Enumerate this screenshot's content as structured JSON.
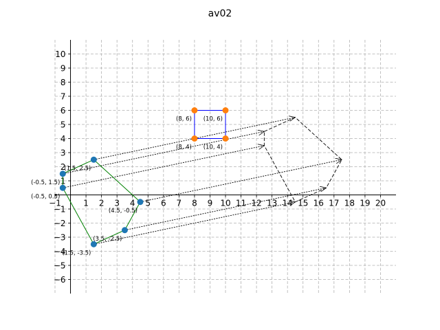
{
  "chart_data": {
    "type": "scatter",
    "title": "av02",
    "xlim": [
      -1,
      21
    ],
    "ylim": [
      -7,
      11
    ],
    "xticks": [
      -1,
      1,
      2,
      3,
      4,
      5,
      6,
      7,
      8,
      9,
      10,
      11,
      12,
      13,
      14,
      15,
      16,
      17,
      18,
      19,
      20
    ],
    "yticks": [
      -6,
      -5,
      -4,
      -3,
      -2,
      -1,
      1,
      2,
      3,
      4,
      5,
      6,
      7,
      8,
      9,
      10
    ],
    "grid": true,
    "colors": {
      "green_polygon": "#008000",
      "blue_square": "#0000ff",
      "blue_points": "#1f77b4",
      "orange_points": "#ff7f0e",
      "dashed": "#000000"
    },
    "polygon_green": [
      [
        -0.5,
        1.5
      ],
      [
        1.5,
        2.5
      ],
      [
        4.5,
        -0.5
      ],
      [
        3.5,
        -2.5
      ],
      [
        1.5,
        -3.5
      ],
      [
        -0.5,
        0.5
      ]
    ],
    "square_blue": [
      [
        8,
        6
      ],
      [
        10,
        6
      ],
      [
        10,
        4
      ],
      [
        8,
        4
      ]
    ],
    "arrows": [
      {
        "from": [
          -0.5,
          1.5
        ],
        "to": [
          12.5,
          4.5
        ]
      },
      {
        "from": [
          1.5,
          2.5
        ],
        "to": [
          14.5,
          5.5
        ]
      },
      {
        "from": [
          -0.5,
          0.5
        ],
        "to": [
          12.5,
          3.5
        ]
      },
      {
        "from": [
          4.5,
          -0.5
        ],
        "to": [
          17.5,
          2.5
        ]
      },
      {
        "from": [
          1.5,
          -3.5
        ],
        "to": [
          14.5,
          -0.5
        ]
      },
      {
        "from": [
          3.5,
          -2.5
        ],
        "to": [
          16.5,
          0.5
        ]
      }
    ],
    "polygon_dashed": [
      [
        12.5,
        4.5
      ],
      [
        14.5,
        5.5
      ],
      [
        17.5,
        2.5
      ],
      [
        16.5,
        0.5
      ],
      [
        14.5,
        -0.5
      ],
      [
        12.5,
        3.5
      ]
    ],
    "labels": [
      {
        "text": "(1.5, 2.5)",
        "x": 1.5,
        "y": 2.5,
        "ha": "right",
        "va": "top"
      },
      {
        "text": "(-0.5, 1.5)",
        "x": -0.5,
        "y": 1.5,
        "ha": "right",
        "va": "top"
      },
      {
        "text": "(-0.5, 0.5)",
        "x": -0.5,
        "y": 0.5,
        "ha": "right",
        "va": "top"
      },
      {
        "text": "(4.5, -0.5)",
        "x": 4.5,
        "y": -0.5,
        "ha": "right",
        "va": "top"
      },
      {
        "text": "(3.5, -2.5)",
        "x": 3.5,
        "y": -2.5,
        "ha": "right",
        "va": "top"
      },
      {
        "text": "(1.5, -3.5)",
        "x": 1.5,
        "y": -3.5,
        "ha": "right",
        "va": "top"
      },
      {
        "text": "(8, 6)",
        "x": 8,
        "y": 6,
        "ha": "right",
        "va": "top"
      },
      {
        "text": "(10, 6)",
        "x": 10,
        "y": 6,
        "ha": "right",
        "va": "top"
      },
      {
        "text": "(8, 4)",
        "x": 8,
        "y": 4,
        "ha": "right",
        "va": "top"
      },
      {
        "text": "(10, 4)",
        "x": 10,
        "y": 4,
        "ha": "right",
        "va": "top"
      }
    ]
  }
}
